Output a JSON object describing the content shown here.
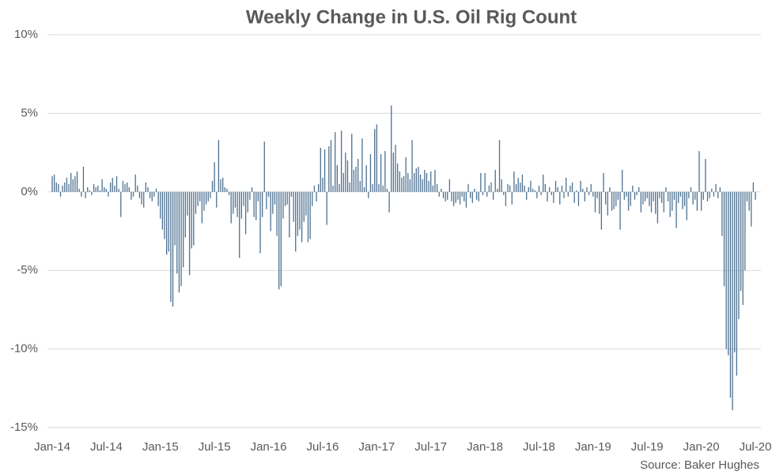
{
  "chart_data": {
    "type": "bar",
    "title": "Weekly Change in U.S. Oil Rig Count",
    "source": "Source: Baker Hughes",
    "color": "#4d7191",
    "grid": true,
    "ylim": [
      -15,
      10
    ],
    "yticks": [
      {
        "value": -15,
        "label": "-15%"
      },
      {
        "value": -10,
        "label": "-10%"
      },
      {
        "value": -5,
        "label": "-5%"
      },
      {
        "value": 0,
        "label": "0%"
      },
      {
        "value": 5,
        "label": "5%"
      },
      {
        "value": 10,
        "label": "10%"
      }
    ],
    "categories": [
      "Jan-14",
      null,
      null,
      null,
      null,
      null,
      null,
      null,
      null,
      null,
      null,
      null,
      null,
      null,
      null,
      null,
      null,
      null,
      null,
      null,
      null,
      null,
      null,
      null,
      null,
      null,
      "Jul-14",
      null,
      null,
      null,
      null,
      null,
      null,
      null,
      null,
      null,
      null,
      null,
      null,
      null,
      null,
      null,
      null,
      null,
      null,
      null,
      null,
      null,
      null,
      null,
      null,
      null,
      "Jan-15",
      null,
      null,
      null,
      null,
      null,
      null,
      null,
      null,
      null,
      null,
      null,
      null,
      null,
      null,
      null,
      null,
      null,
      null,
      null,
      null,
      null,
      null,
      null,
      null,
      null,
      "Jul-15",
      null,
      null,
      null,
      null,
      null,
      null,
      null,
      null,
      null,
      null,
      null,
      null,
      null,
      null,
      null,
      null,
      null,
      null,
      null,
      null,
      null,
      null,
      null,
      null,
      null,
      "Jan-16",
      null,
      null,
      null,
      null,
      null,
      null,
      null,
      null,
      null,
      null,
      null,
      null,
      null,
      null,
      null,
      null,
      null,
      null,
      null,
      null,
      null,
      null,
      null,
      null,
      null,
      "Jul-16",
      null,
      null,
      null,
      null,
      null,
      null,
      null,
      null,
      null,
      null,
      null,
      null,
      null,
      null,
      null,
      null,
      null,
      null,
      null,
      null,
      null,
      null,
      null,
      null,
      null,
      "Jan-17",
      null,
      null,
      null,
      null,
      null,
      null,
      null,
      null,
      null,
      null,
      null,
      null,
      null,
      null,
      null,
      null,
      null,
      null,
      null,
      null,
      null,
      null,
      null,
      null,
      null,
      "Jul-17",
      null,
      null,
      null,
      null,
      null,
      null,
      null,
      null,
      null,
      null,
      null,
      null,
      null,
      null,
      null,
      null,
      null,
      null,
      null,
      null,
      null,
      null,
      null,
      null,
      null,
      "Jan-18",
      null,
      null,
      null,
      null,
      null,
      null,
      null,
      null,
      null,
      null,
      null,
      null,
      null,
      null,
      null,
      null,
      null,
      null,
      null,
      null,
      null,
      null,
      null,
      null,
      null,
      "Jul-18",
      null,
      null,
      null,
      null,
      null,
      null,
      null,
      null,
      null,
      null,
      null,
      null,
      null,
      null,
      null,
      null,
      null,
      null,
      null,
      null,
      null,
      null,
      null,
      null,
      null,
      "Jan-19",
      null,
      null,
      null,
      null,
      null,
      null,
      null,
      null,
      null,
      null,
      null,
      null,
      null,
      null,
      null,
      null,
      null,
      null,
      null,
      null,
      null,
      null,
      null,
      null,
      null,
      "Jul-19",
      null,
      null,
      null,
      null,
      null,
      null,
      null,
      null,
      null,
      null,
      null,
      null,
      null,
      null,
      null,
      null,
      null,
      null,
      null,
      null,
      null,
      null,
      null,
      null,
      null,
      "Jan-20",
      null,
      null,
      null,
      null,
      null,
      null,
      null,
      null,
      null,
      null,
      null,
      null,
      null,
      null,
      null,
      null,
      null,
      null,
      null,
      null,
      null,
      null,
      null,
      null,
      null,
      "Jul-20"
    ],
    "values": [
      1.0,
      1.1,
      0.6,
      0.5,
      -0.3,
      0.4,
      0.6,
      0.9,
      0.5,
      1.2,
      0.8,
      1.0,
      1.3,
      0.2,
      -0.3,
      1.6,
      -0.4,
      0.3,
      0.1,
      -0.2,
      0.5,
      0.3,
      0.4,
      0.1,
      0.8,
      0.3,
      0.2,
      -0.3,
      0.6,
      0.9,
      0.4,
      1.0,
      0.2,
      -1.6,
      0.7,
      0.5,
      0.6,
      0.3,
      -0.5,
      -0.3,
      1.1,
      0.4,
      -0.4,
      -0.8,
      -1.0,
      0.6,
      0.3,
      -0.4,
      -0.6,
      -0.3,
      0.2,
      -0.9,
      -1.7,
      -2.4,
      -3.0,
      -4.0,
      -3.8,
      -7.0,
      -7.3,
      -3.4,
      -5.2,
      -6.4,
      -6.0,
      -4.8,
      -2.9,
      -1.5,
      -5.3,
      -3.6,
      -3.4,
      -1.4,
      -0.9,
      -0.6,
      -2.0,
      -1.2,
      -0.8,
      -0.6,
      -0.4,
      0.7,
      1.9,
      -1.0,
      3.3,
      0.8,
      0.9,
      0.3,
      0.2,
      -0.2,
      -2.0,
      -1.4,
      -1.0,
      -1.6,
      -4.2,
      -1.7,
      -0.9,
      -2.7,
      -1.3,
      -0.5,
      0.3,
      -1.6,
      -1.8,
      -0.6,
      -3.9,
      -1.6,
      3.2,
      -1.1,
      -0.3,
      -2.5,
      -1.4,
      -0.8,
      -2.8,
      -6.2,
      -6.0,
      -1.7,
      -0.9,
      -0.8,
      -2.9,
      -0.3,
      -1.9,
      -3.8,
      -2.8,
      -2.4,
      -3.2,
      -1.9,
      -1.5,
      -3.2,
      -3.0,
      -0.9,
      0.4,
      -0.6,
      0.5,
      2.8,
      0.9,
      2.7,
      -2.1,
      2.9,
      3.3,
      0.4,
      3.8,
      1.7,
      0.5,
      3.9,
      1.2,
      2.5,
      2.0,
      0.6,
      3.7,
      1.4,
      1.6,
      2.1,
      0.7,
      3.4,
      0.3,
      1.7,
      -0.4,
      2.4,
      0.5,
      4.0,
      4.3,
      0.5,
      2.4,
      0.4,
      2.6,
      0.2,
      -1.3,
      5.5,
      2.5,
      3.0,
      1.8,
      1.3,
      0.9,
      1.0,
      2.2,
      1.2,
      0.8,
      3.3,
      1.2,
      1.5,
      1.6,
      1.1,
      0.8,
      1.4,
      1.2,
      0.7,
      1.3,
      0.4,
      1.4,
      0.5,
      -0.3,
      0.2,
      -0.4,
      -0.6,
      -0.5,
      0.8,
      -0.6,
      -0.9,
      -0.7,
      -0.5,
      -0.8,
      -0.3,
      -0.6,
      -1.0,
      0.5,
      -0.4,
      -0.7,
      0.2,
      -0.5,
      -0.6,
      1.2,
      -0.2,
      1.2,
      -0.3,
      0.4,
      0.6,
      -0.5,
      1.4,
      0.2,
      3.3,
      0.8,
      -0.2,
      -0.9,
      0.5,
      0.4,
      -0.8,
      1.3,
      0.5,
      0.9,
      0.6,
      1.1,
      0.4,
      -0.5,
      0.3,
      0.7,
      0.2,
      0.1,
      -0.4,
      0.4,
      -0.2,
      1.1,
      0.5,
      -0.6,
      0.3,
      -0.2,
      -0.7,
      0.7,
      0.3,
      -0.8,
      0.4,
      -0.4,
      0.9,
      -0.3,
      0.4,
      0.6,
      -0.7,
      0.1,
      -0.9,
      0.7,
      0.2,
      -0.6,
      0.3,
      -0.2,
      0.5,
      -0.3,
      -1.3,
      -0.4,
      -1.4,
      -2.4,
      1.2,
      -0.8,
      -1.5,
      0.3,
      -1.2,
      -1.1,
      -0.9,
      -0.5,
      -2.4,
      1.4,
      -0.5,
      -0.3,
      -1.2,
      -0.9,
      0.4,
      -0.5,
      -0.2,
      0.3,
      -1.3,
      -0.8,
      -0.6,
      -0.4,
      -0.9,
      -1.3,
      -0.6,
      -1.4,
      -2.0,
      -0.4,
      -0.7,
      -1.3,
      0.3,
      -0.6,
      -1.6,
      -1.2,
      -0.5,
      -2.3,
      -0.7,
      -0.3,
      -1.1,
      -0.9,
      -1.8,
      -0.4,
      0.3,
      -0.8,
      -0.5,
      -1.2,
      2.6,
      -1.2,
      -0.5,
      2.1,
      -0.6,
      -0.4,
      0.2,
      -0.3,
      0.5,
      -0.4,
      0.3,
      -2.8,
      -6.0,
      -10.0,
      -10.4,
      -13.1,
      -13.9,
      -10.2,
      -11.7,
      -8.1,
      -6.3,
      -7.2,
      -5.0,
      -0.6,
      -1.2,
      -2.2,
      0.6,
      -0.5
    ]
  }
}
